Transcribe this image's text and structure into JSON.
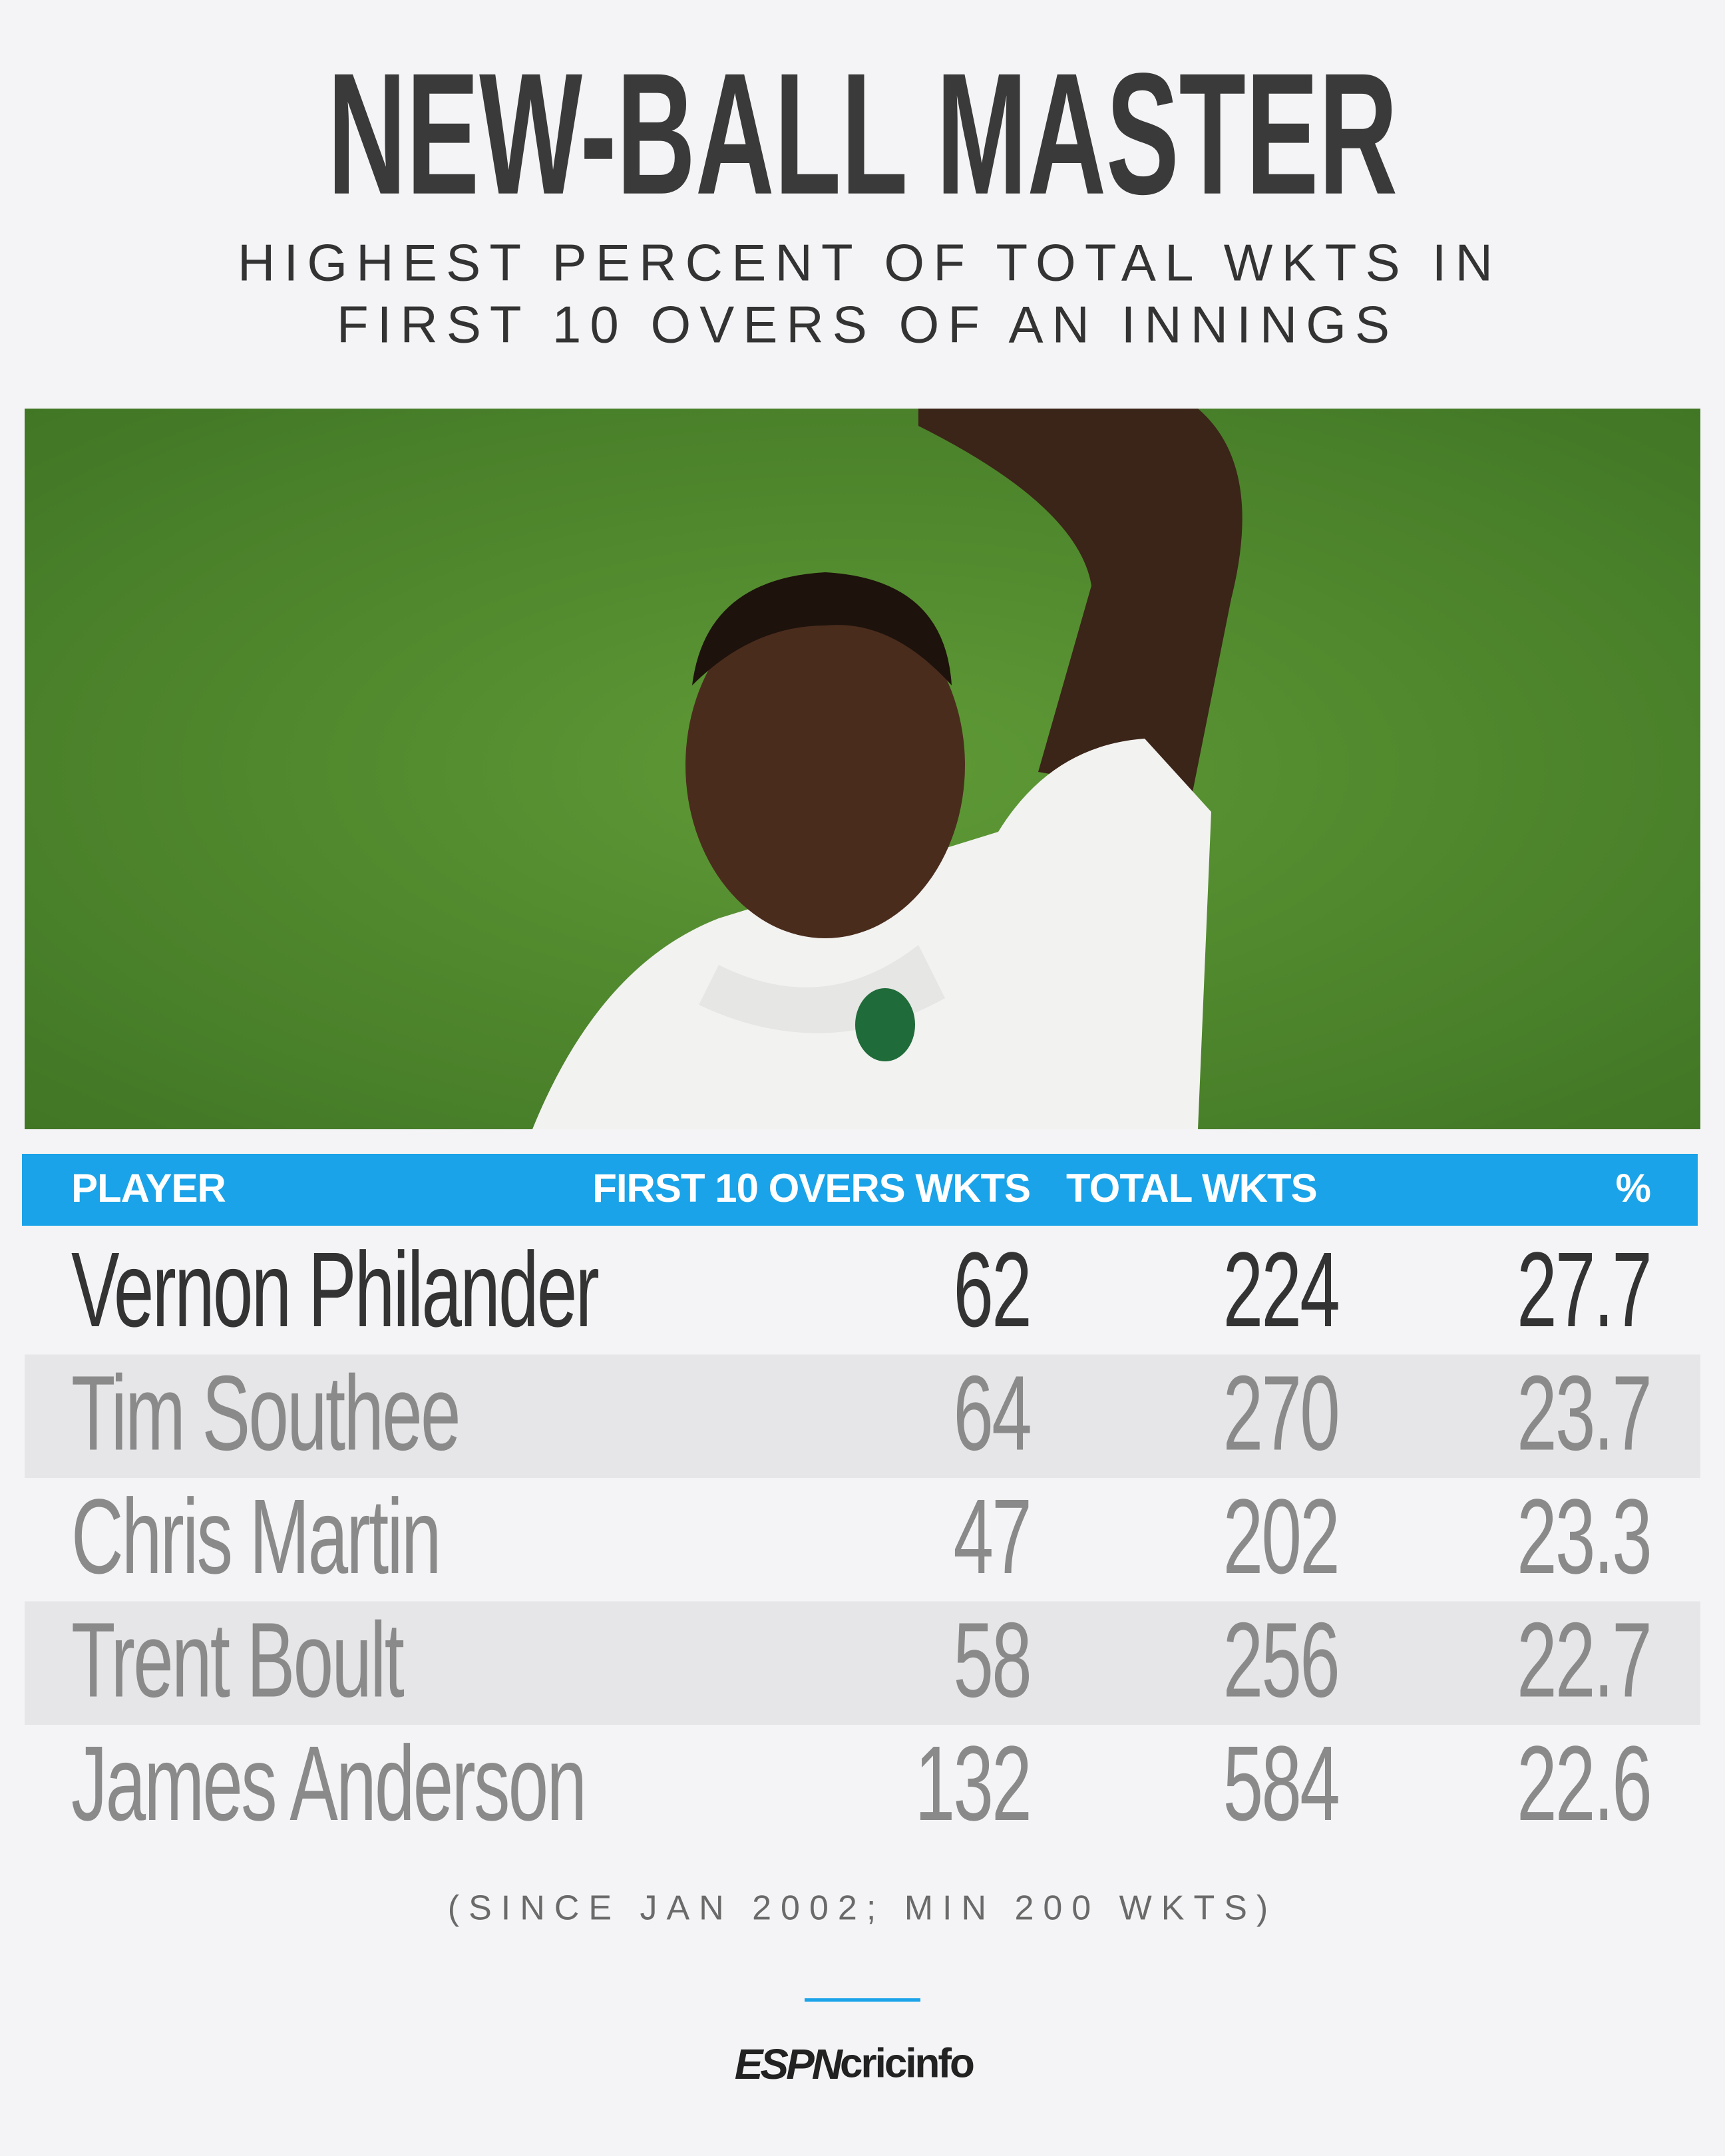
{
  "header": {
    "title": "NEW-BALL MASTER",
    "subtitle": [
      "HIGHEST PERCENT OF TOTAL WKTS IN",
      "FIRST 10 OVERS OF AN INNINGS"
    ]
  },
  "table": {
    "columns": [
      "PLAYER",
      "FIRST 10 OVERS WKTS",
      "TOTAL WKTS",
      "%"
    ],
    "rows": [
      [
        "Vernon Philander",
        62,
        224,
        27.7
      ],
      [
        "Tim Southee",
        64,
        270,
        23.7
      ],
      [
        "Chris Martin",
        47,
        202,
        23.3
      ],
      [
        "Trent Boult",
        58,
        256,
        22.7
      ],
      [
        "James Anderson",
        132,
        584,
        22.6
      ]
    ]
  },
  "footnote": "(SINCE JAN 2002; MIN 200 WKTS)",
  "logo": {
    "brand": "ESPN",
    "name": "cricinfo"
  }
}
